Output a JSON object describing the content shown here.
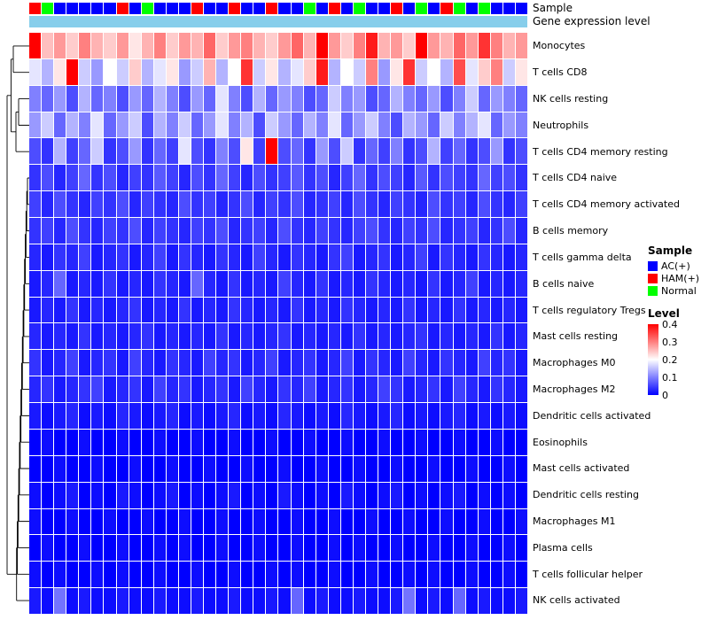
{
  "figure": {
    "annotation_labels": {
      "sample": "Sample",
      "gene": "Gene expression level"
    },
    "gene_bar_color": "#87CEEB",
    "background": "#FFFFFF"
  },
  "legend": {
    "sample_title": "Sample",
    "sample_entries": [
      {
        "label": "AC(+)",
        "color": "#0000FF"
      },
      {
        "label": "HAM(+)",
        "color": "#FF0000"
      },
      {
        "label": "Normal",
        "color": "#00FF00"
      }
    ],
    "level_title": "Level",
    "level_ticks": [
      "0.4",
      "0.3",
      "0.2",
      "0.1",
      "0"
    ],
    "level_max": 0.4,
    "level_min": 0
  },
  "chart_data": {
    "type": "heatmap",
    "title": "",
    "colormap": "blue-white-red",
    "value_range": [
      0,
      0.4
    ],
    "legend_position": "right",
    "row_dendrogram": true,
    "rows": [
      "Monocytes",
      "T cells CD8",
      "NK cells resting",
      "Neutrophils",
      "T cells CD4 memory resting",
      "T cells CD4 naive",
      "T cells CD4 memory activated",
      "B cells memory",
      "T cells gamma delta",
      "B cells naive",
      "T cells regulatory  Tregs",
      "Mast cells resting",
      "Macrophages M0",
      "Macrophages M2",
      "Dendritic cells activated",
      "Eosinophils",
      "Mast cells activated",
      "Dendritic cells resting",
      "Macrophages M1",
      "Plasma cells",
      "T cells follicular helper",
      "NK cells activated"
    ],
    "group_colors": {
      "AC(+)": "#0000FF",
      "HAM(+)": "#FF0000",
      "Normal": "#00FF00"
    },
    "sample_groups": [
      "HAM(+)",
      "Normal",
      "AC(+)",
      "AC(+)",
      "AC(+)",
      "AC(+)",
      "AC(+)",
      "HAM(+)",
      "AC(+)",
      "Normal",
      "AC(+)",
      "AC(+)",
      "AC(+)",
      "HAM(+)",
      "AC(+)",
      "AC(+)",
      "HAM(+)",
      "AC(+)",
      "AC(+)",
      "HAM(+)",
      "AC(+)",
      "AC(+)",
      "Normal",
      "AC(+)",
      "HAM(+)",
      "AC(+)",
      "Normal",
      "AC(+)",
      "AC(+)",
      "HAM(+)",
      "AC(+)",
      "Normal",
      "AC(+)",
      "HAM(+)",
      "Normal",
      "AC(+)",
      "Normal",
      "AC(+)",
      "AC(+)",
      "AC(+)"
    ],
    "matrix": [
      [
        0.42,
        0.25,
        0.28,
        0.24,
        0.3,
        0.26,
        0.24,
        0.28,
        0.22,
        0.26,
        0.3,
        0.24,
        0.28,
        0.26,
        0.32,
        0.24,
        0.28,
        0.3,
        0.26,
        0.24,
        0.28,
        0.32,
        0.26,
        0.4,
        0.28,
        0.24,
        0.3,
        0.38,
        0.26,
        0.28,
        0.24,
        0.4,
        0.28,
        0.26,
        0.32,
        0.28,
        0.36,
        0.3,
        0.26,
        0.28
      ],
      [
        0.18,
        0.14,
        0.22,
        0.4,
        0.16,
        0.12,
        0.2,
        0.16,
        0.24,
        0.14,
        0.18,
        0.22,
        0.12,
        0.16,
        0.26,
        0.14,
        0.2,
        0.36,
        0.16,
        0.22,
        0.14,
        0.18,
        0.24,
        0.38,
        0.14,
        0.2,
        0.16,
        0.3,
        0.12,
        0.22,
        0.36,
        0.16,
        0.2,
        0.14,
        0.34,
        0.18,
        0.24,
        0.3,
        0.16,
        0.22
      ],
      [
        0.1,
        0.08,
        0.12,
        0.06,
        0.14,
        0.08,
        0.1,
        0.06,
        0.12,
        0.08,
        0.14,
        0.1,
        0.06,
        0.12,
        0.08,
        0.18,
        0.1,
        0.06,
        0.14,
        0.08,
        0.12,
        0.1,
        0.06,
        0.08,
        0.16,
        0.1,
        0.12,
        0.06,
        0.08,
        0.14,
        0.1,
        0.08,
        0.12,
        0.06,
        0.1,
        0.16,
        0.08,
        0.12,
        0.1,
        0.08
      ],
      [
        0.12,
        0.16,
        0.08,
        0.14,
        0.1,
        0.18,
        0.08,
        0.12,
        0.16,
        0.06,
        0.14,
        0.1,
        0.16,
        0.08,
        0.12,
        0.18,
        0.1,
        0.14,
        0.06,
        0.16,
        0.12,
        0.08,
        0.14,
        0.1,
        0.18,
        0.08,
        0.12,
        0.16,
        0.1,
        0.06,
        0.14,
        0.12,
        0.08,
        0.16,
        0.1,
        0.14,
        0.18,
        0.08,
        0.12,
        0.1
      ],
      [
        0.06,
        0.04,
        0.14,
        0.05,
        0.08,
        0.16,
        0.04,
        0.06,
        0.12,
        0.04,
        0.08,
        0.05,
        0.18,
        0.06,
        0.04,
        0.1,
        0.06,
        0.22,
        0.05,
        0.4,
        0.06,
        0.08,
        0.04,
        0.12,
        0.06,
        0.16,
        0.04,
        0.08,
        0.05,
        0.1,
        0.04,
        0.06,
        0.14,
        0.05,
        0.08,
        0.04,
        0.06,
        0.12,
        0.04,
        0.06
      ],
      [
        0.04,
        0.06,
        0.03,
        0.05,
        0.08,
        0.04,
        0.06,
        0.03,
        0.05,
        0.04,
        0.07,
        0.05,
        0.03,
        0.06,
        0.04,
        0.08,
        0.05,
        0.03,
        0.06,
        0.04,
        0.05,
        0.07,
        0.04,
        0.06,
        0.03,
        0.05,
        0.08,
        0.04,
        0.06,
        0.05,
        0.03,
        0.07,
        0.04,
        0.06,
        0.05,
        0.04,
        0.08,
        0.05,
        0.06,
        0.04
      ],
      [
        0.05,
        0.03,
        0.06,
        0.04,
        0.03,
        0.05,
        0.04,
        0.06,
        0.03,
        0.05,
        0.04,
        0.03,
        0.06,
        0.04,
        0.05,
        0.03,
        0.04,
        0.06,
        0.03,
        0.05,
        0.04,
        0.06,
        0.03,
        0.04,
        0.05,
        0.03,
        0.06,
        0.04,
        0.03,
        0.05,
        0.04,
        0.03,
        0.06,
        0.04,
        0.05,
        0.03,
        0.06,
        0.04,
        0.03,
        0.05
      ],
      [
        0.04,
        0.05,
        0.03,
        0.06,
        0.04,
        0.03,
        0.05,
        0.04,
        0.06,
        0.03,
        0.05,
        0.04,
        0.03,
        0.05,
        0.04,
        0.06,
        0.03,
        0.04,
        0.05,
        0.03,
        0.06,
        0.04,
        0.03,
        0.05,
        0.04,
        0.03,
        0.05,
        0.06,
        0.04,
        0.03,
        0.05,
        0.04,
        0.06,
        0.03,
        0.04,
        0.05,
        0.03,
        0.04,
        0.06,
        0.03
      ],
      [
        0.03,
        0.02,
        0.04,
        0.03,
        0.05,
        0.02,
        0.03,
        0.04,
        0.02,
        0.03,
        0.05,
        0.02,
        0.04,
        0.03,
        0.02,
        0.04,
        0.03,
        0.02,
        0.05,
        0.03,
        0.02,
        0.04,
        0.03,
        0.02,
        0.04,
        0.05,
        0.02,
        0.03,
        0.04,
        0.02,
        0.03,
        0.05,
        0.02,
        0.04,
        0.03,
        0.02,
        0.04,
        0.03,
        0.02,
        0.03
      ],
      [
        0.02,
        0.03,
        0.08,
        0.02,
        0.03,
        0.02,
        0.04,
        0.02,
        0.03,
        0.02,
        0.04,
        0.03,
        0.02,
        0.08,
        0.03,
        0.02,
        0.04,
        0.02,
        0.03,
        0.02,
        0.05,
        0.03,
        0.02,
        0.04,
        0.02,
        0.03,
        0.02,
        0.04,
        0.03,
        0.02,
        0.03,
        0.02,
        0.04,
        0.02,
        0.03,
        0.05,
        0.02,
        0.03,
        0.02,
        0.03
      ],
      [
        0.02,
        0.03,
        0.02,
        0.04,
        0.02,
        0.03,
        0.02,
        0.03,
        0.04,
        0.02,
        0.03,
        0.02,
        0.04,
        0.02,
        0.03,
        0.02,
        0.04,
        0.03,
        0.02,
        0.03,
        0.02,
        0.04,
        0.02,
        0.03,
        0.02,
        0.04,
        0.03,
        0.02,
        0.03,
        0.02,
        0.04,
        0.02,
        0.03,
        0.02,
        0.04,
        0.02,
        0.03,
        0.02,
        0.03,
        0.02
      ],
      [
        0.03,
        0.02,
        0.03,
        0.02,
        0.04,
        0.02,
        0.03,
        0.02,
        0.03,
        0.04,
        0.02,
        0.03,
        0.02,
        0.03,
        0.02,
        0.04,
        0.02,
        0.03,
        0.02,
        0.03,
        0.04,
        0.02,
        0.03,
        0.02,
        0.03,
        0.02,
        0.04,
        0.02,
        0.03,
        0.02,
        0.03,
        0.04,
        0.02,
        0.03,
        0.02,
        0.03,
        0.02,
        0.04,
        0.02,
        0.03
      ],
      [
        0.04,
        0.02,
        0.03,
        0.05,
        0.02,
        0.03,
        0.04,
        0.02,
        0.05,
        0.03,
        0.02,
        0.04,
        0.03,
        0.02,
        0.05,
        0.03,
        0.04,
        0.02,
        0.03,
        0.05,
        0.02,
        0.03,
        0.04,
        0.02,
        0.03,
        0.05,
        0.02,
        0.04,
        0.03,
        0.02,
        0.05,
        0.03,
        0.02,
        0.04,
        0.03,
        0.02,
        0.05,
        0.03,
        0.04,
        0.02
      ],
      [
        0.03,
        0.04,
        0.02,
        0.03,
        0.04,
        0.05,
        0.02,
        0.03,
        0.04,
        0.02,
        0.05,
        0.03,
        0.04,
        0.02,
        0.03,
        0.04,
        0.02,
        0.05,
        0.03,
        0.02,
        0.04,
        0.03,
        0.05,
        0.02,
        0.03,
        0.04,
        0.02,
        0.03,
        0.05,
        0.04,
        0.02,
        0.03,
        0.04,
        0.02,
        0.05,
        0.03,
        0.02,
        0.04,
        0.03,
        0.02
      ],
      [
        0.02,
        0.01,
        0.02,
        0.03,
        0.01,
        0.02,
        0.01,
        0.03,
        0.02,
        0.01,
        0.02,
        0.03,
        0.01,
        0.02,
        0.01,
        0.02,
        0.03,
        0.01,
        0.02,
        0.01,
        0.03,
        0.02,
        0.01,
        0.02,
        0.01,
        0.03,
        0.02,
        0.01,
        0.02,
        0.03,
        0.01,
        0.02,
        0.01,
        0.02,
        0.03,
        0.01,
        0.02,
        0.01,
        0.02,
        0.01
      ],
      [
        0.0,
        0.01,
        0.0,
        0.0,
        0.01,
        0.0,
        0.0,
        0.01,
        0.0,
        0.0,
        0.01,
        0.0,
        0.0,
        0.01,
        0.0,
        0.0,
        0.01,
        0.0,
        0.0,
        0.01,
        0.0,
        0.0,
        0.01,
        0.0,
        0.0,
        0.01,
        0.0,
        0.0,
        0.01,
        0.0,
        0.0,
        0.01,
        0.0,
        0.0,
        0.01,
        0.0,
        0.0,
        0.01,
        0.0,
        0.0
      ],
      [
        0.0,
        0.0,
        0.01,
        0.0,
        0.0,
        0.01,
        0.0,
        0.0,
        0.01,
        0.0,
        0.0,
        0.01,
        0.0,
        0.0,
        0.01,
        0.0,
        0.0,
        0.01,
        0.0,
        0.0,
        0.01,
        0.0,
        0.0,
        0.01,
        0.0,
        0.0,
        0.01,
        0.0,
        0.0,
        0.01,
        0.0,
        0.0,
        0.01,
        0.0,
        0.0,
        0.01,
        0.0,
        0.0,
        0.01,
        0.0
      ],
      [
        0.01,
        0.0,
        0.01,
        0.02,
        0.0,
        0.01,
        0.0,
        0.02,
        0.01,
        0.0,
        0.01,
        0.02,
        0.0,
        0.01,
        0.0,
        0.01,
        0.02,
        0.0,
        0.01,
        0.0,
        0.02,
        0.01,
        0.0,
        0.01,
        0.0,
        0.02,
        0.01,
        0.0,
        0.01,
        0.02,
        0.0,
        0.01,
        0.0,
        0.01,
        0.02,
        0.0,
        0.01,
        0.0,
        0.01,
        0.0
      ],
      [
        0.01,
        0.0,
        0.0,
        0.01,
        0.0,
        0.0,
        0.01,
        0.0,
        0.0,
        0.01,
        0.0,
        0.0,
        0.01,
        0.0,
        0.0,
        0.01,
        0.0,
        0.0,
        0.01,
        0.0,
        0.0,
        0.01,
        0.0,
        0.0,
        0.01,
        0.0,
        0.0,
        0.01,
        0.0,
        0.0,
        0.01,
        0.0,
        0.0,
        0.01,
        0.0,
        0.0,
        0.01,
        0.0,
        0.0,
        0.01
      ],
      [
        0.0,
        0.01,
        0.0,
        0.0,
        0.01,
        0.0,
        0.0,
        0.01,
        0.0,
        0.0,
        0.01,
        0.0,
        0.01,
        0.0,
        0.0,
        0.01,
        0.0,
        0.0,
        0.01,
        0.0,
        0.0,
        0.01,
        0.0,
        0.0,
        0.01,
        0.0,
        0.01,
        0.0,
        0.0,
        0.01,
        0.0,
        0.0,
        0.01,
        0.0,
        0.0,
        0.01,
        0.0,
        0.0,
        0.01,
        0.0
      ],
      [
        0.01,
        0.0,
        0.01,
        0.0,
        0.0,
        0.01,
        0.0,
        0.01,
        0.0,
        0.0,
        0.01,
        0.0,
        0.0,
        0.01,
        0.0,
        0.0,
        0.01,
        0.0,
        0.0,
        0.01,
        0.0,
        0.01,
        0.0,
        0.0,
        0.01,
        0.0,
        0.0,
        0.01,
        0.0,
        0.0,
        0.01,
        0.0,
        0.01,
        0.0,
        0.0,
        0.01,
        0.0,
        0.0,
        0.01,
        0.0
      ],
      [
        0.02,
        0.01,
        0.09,
        0.01,
        0.02,
        0.01,
        0.01,
        0.02,
        0.01,
        0.01,
        0.02,
        0.01,
        0.01,
        0.02,
        0.01,
        0.01,
        0.02,
        0.01,
        0.01,
        0.02,
        0.01,
        0.08,
        0.01,
        0.02,
        0.01,
        0.01,
        0.02,
        0.01,
        0.01,
        0.02,
        0.09,
        0.01,
        0.02,
        0.01,
        0.08,
        0.01,
        0.02,
        0.01,
        0.01,
        0.02
      ]
    ]
  }
}
